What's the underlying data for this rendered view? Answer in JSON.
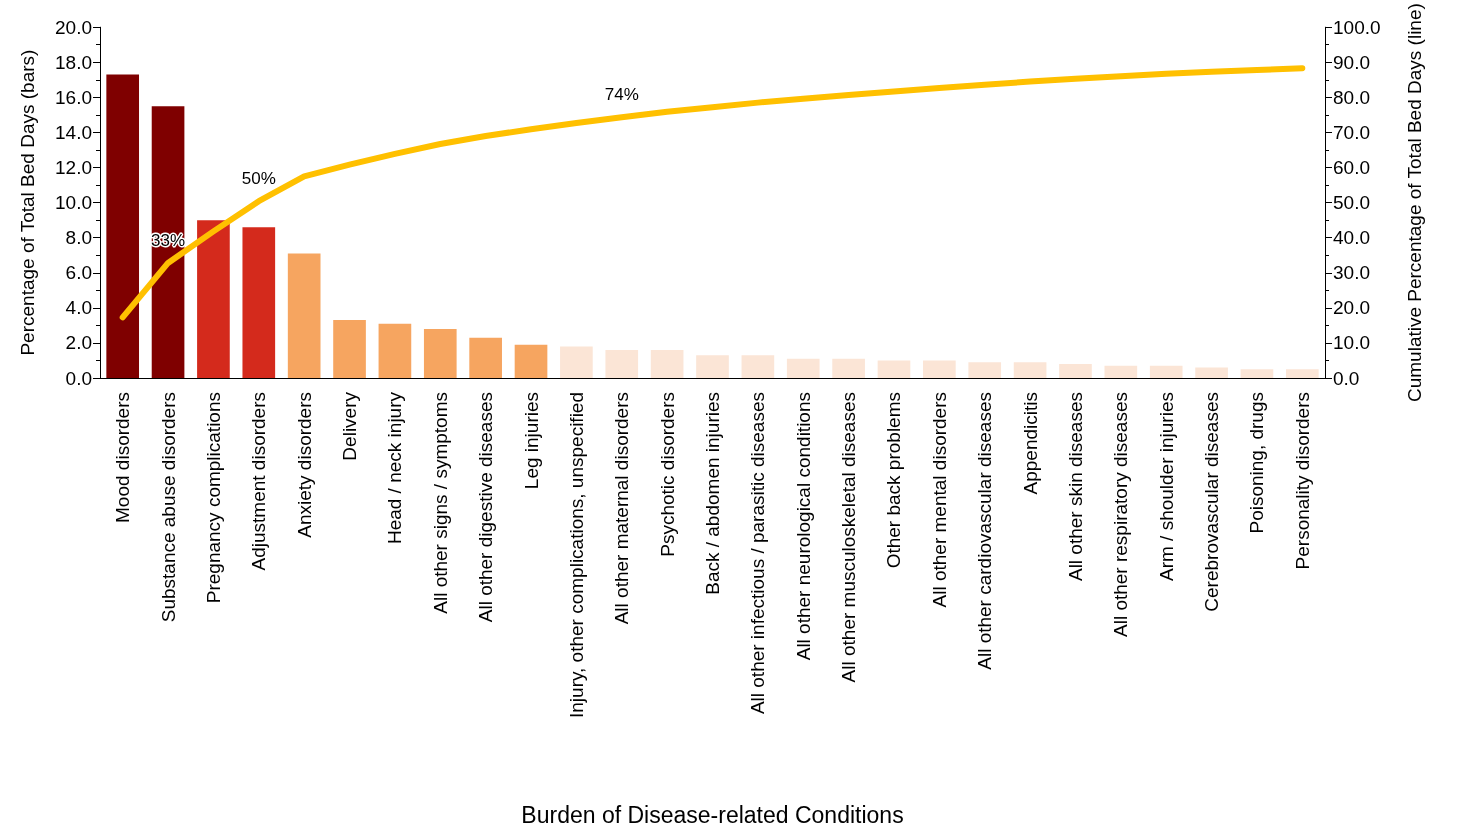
{
  "chart_data": {
    "type": "bar",
    "xlabel": "Burden of Disease-related Conditions",
    "ylabel": "Percentage of Total Bed Days (bars)",
    "y2label": "Cumulative Percentage of Total Bed Days (line)",
    "categories": [
      "Mood disorders",
      "Substance abuse disorders",
      "Pregnancy complications",
      "Adjustment disorders",
      "Anxiety disorders",
      "Delivery",
      "Head / neck injury",
      "All other signs / symptoms",
      "All other digestive diseases",
      "Leg injuries",
      "Injury, other complications, unspecified",
      "All other maternal disorders",
      "Psychotic disorders",
      "Back / abdomen injuries",
      "All other infectious / parasitic diseases",
      "All other neurological conditions",
      "All other musculoskeletal diseases",
      "Other back problems",
      "All other mental disorders",
      "All other cardiovascular diseases",
      "Appendicitis",
      "All other skin diseases",
      "All other respiratory diseases",
      "Arm / shoulder injuries",
      "Cerebrovascular diseases",
      "Poisoning, drugs",
      "Personality disorders"
    ],
    "series": [
      {
        "colors": [
          "#7f0000",
          "#7f0000",
          "#d42a1c",
          "#d42a1c",
          "#f6a560",
          "#f6a560",
          "#f6a560",
          "#f6a560",
          "#f6a560",
          "#f6a560",
          "#fbe5d6",
          "#fbe5d6",
          "#fbe5d6",
          "#fbe5d6",
          "#fbe5d6",
          "#fbe5d6",
          "#fbe5d6",
          "#fbe5d6",
          "#fbe5d6",
          "#fbe5d6",
          "#fbe5d6",
          "#fbe5d6",
          "#fbe5d6",
          "#fbe5d6",
          "#fbe5d6",
          "#fbe5d6",
          "#fbe5d6"
        ],
        "values": [
          17.3,
          15.5,
          9.0,
          8.6,
          7.1,
          3.3,
          3.1,
          2.8,
          2.3,
          1.9,
          1.8,
          1.6,
          1.6,
          1.3,
          1.3,
          1.1,
          1.1,
          1.0,
          1.0,
          0.9,
          0.9,
          0.8,
          0.7,
          0.7,
          0.6,
          0.5,
          0.5
        ]
      },
      {
        "type": "line",
        "axis": "y2",
        "color": "#ffc000",
        "values": [
          17.3,
          32.8,
          41.8,
          50.4,
          57.5,
          60.8,
          63.9,
          66.7,
          69.0,
          70.9,
          72.7,
          74.3,
          75.9,
          77.2,
          78.5,
          79.6,
          80.7,
          81.7,
          82.7,
          83.6,
          84.5,
          85.3,
          86.0,
          86.7,
          87.3,
          87.8,
          88.3
        ],
        "value_labels": [
          null,
          "33%",
          null,
          "50%",
          null,
          null,
          null,
          null,
          null,
          null,
          null,
          "74%",
          null,
          null,
          null,
          null,
          null,
          null,
          null,
          null,
          null,
          null,
          null,
          null,
          null,
          null,
          null
        ]
      }
    ],
    "ylim": [
      0,
      20
    ],
    "yticks": [
      {
        "value": 0,
        "label": "0.0"
      },
      {
        "value": 2,
        "label": "2.0"
      },
      {
        "value": 4,
        "label": "4.0"
      },
      {
        "value": 6,
        "label": "6.0"
      },
      {
        "value": 8,
        "label": "8.0"
      },
      {
        "value": 10,
        "label": "10.0"
      },
      {
        "value": 12,
        "label": "12.0"
      },
      {
        "value": 14,
        "label": "14.0"
      },
      {
        "value": 16,
        "label": "16.0"
      },
      {
        "value": 18,
        "label": "18.0"
      },
      {
        "value": 20,
        "label": "20.0"
      }
    ],
    "y2lim": [
      0,
      100
    ],
    "y2ticks": [
      {
        "value": 0,
        "label": "0.0"
      },
      {
        "value": 10,
        "label": "10.0"
      },
      {
        "value": 20,
        "label": "20.0"
      },
      {
        "value": 30,
        "label": "30.0"
      },
      {
        "value": 40,
        "label": "40.0"
      },
      {
        "value": 50,
        "label": "50.0"
      },
      {
        "value": 60,
        "label": "60.0"
      },
      {
        "value": 70,
        "label": "70.0"
      },
      {
        "value": 80,
        "label": "80.0"
      },
      {
        "value": 90,
        "label": "90.0"
      },
      {
        "value": 100,
        "label": "100.0"
      }
    ],
    "grid": false,
    "marker": "none",
    "line_style": "solid"
  }
}
